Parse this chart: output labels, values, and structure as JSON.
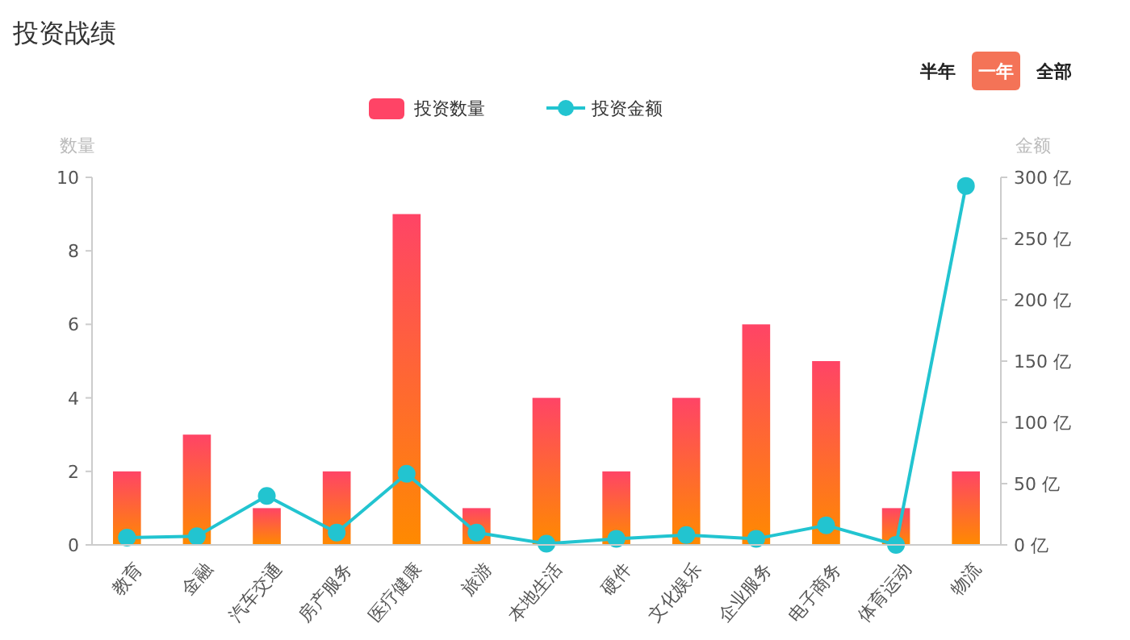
{
  "chart_data": {
    "type": "bar",
    "title": "投资战绩",
    "ylabel": "数量",
    "y2label": "金额",
    "legend": "top",
    "annotations": [
      "半年",
      "一年",
      "全部"
    ],
    "categories": [
      "教育",
      "金融",
      "汽车交通",
      "房产服务",
      "医疗健康",
      "旅游",
      "本地生活",
      "硬件",
      "文化娱乐",
      "企业服务",
      "电子商务",
      "体育运动",
      "物流"
    ],
    "series": [
      {
        "name": "投资数量",
        "color": "#ff4466",
        "values": [
          2,
          3,
          1,
          2,
          9,
          1,
          4,
          2,
          4,
          6,
          5,
          1,
          2
        ]
      },
      {
        "name": "投资金额",
        "type": "line",
        "axis": "y2",
        "color": "#22c4d0",
        "marker": "circle",
        "values": [
          6,
          7,
          40,
          10,
          58,
          10,
          1,
          5,
          8,
          5,
          16,
          0,
          293
        ]
      }
    ],
    "ylim": [
      0,
      10
    ],
    "yticks": [
      0,
      2,
      4,
      6,
      8,
      10
    ],
    "y2lim": [
      0,
      300
    ],
    "y2ticks": [
      {
        "value": 0,
        "label": "0 亿"
      },
      {
        "value": 50,
        "label": "50 亿"
      },
      {
        "value": 100,
        "label": "100 亿"
      },
      {
        "value": 150,
        "label": "150 亿"
      },
      {
        "value": 200,
        "label": "200 亿"
      },
      {
        "value": 250,
        "label": "250 亿"
      },
      {
        "value": 300,
        "label": "300 亿"
      }
    ]
  }
}
